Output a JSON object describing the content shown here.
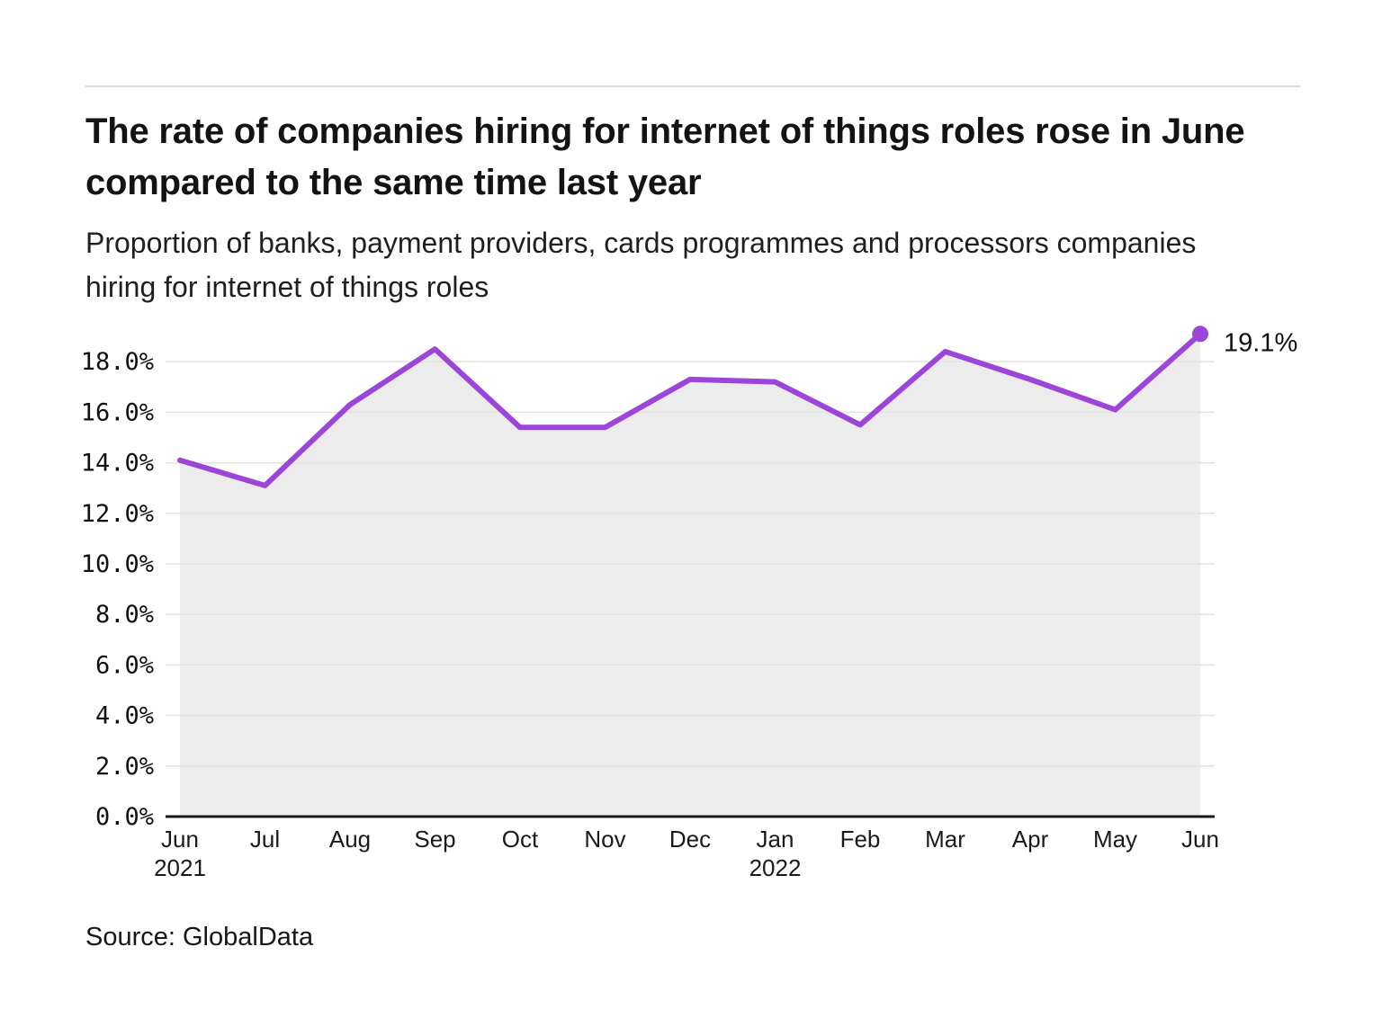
{
  "header": {
    "title": "The rate of companies hiring for internet of things roles rose in June compared to the same time last year",
    "subtitle": "Proportion of banks, payment providers, cards programmes and processors companies hiring for internet of things roles"
  },
  "source": {
    "label": "Source: GlobalData"
  },
  "chart_data": {
    "type": "area",
    "title": "The rate of companies hiring for internet of things roles rose in June compared to the same time last year",
    "subtitle": "Proportion of banks, payment providers, cards programmes and processors companies hiring for internet of things roles",
    "x": [
      "Jun 2021",
      "Jul 2021",
      "Aug 2021",
      "Sep 2021",
      "Oct 2021",
      "Nov 2021",
      "Dec 2021",
      "Jan 2022",
      "Feb 2022",
      "Mar 2022",
      "Apr 2022",
      "May 2022",
      "Jun 2022"
    ],
    "x_tick_labels": [
      {
        "month": "Jun",
        "year": "2021"
      },
      {
        "month": "Jul"
      },
      {
        "month": "Aug"
      },
      {
        "month": "Sep"
      },
      {
        "month": "Oct"
      },
      {
        "month": "Nov"
      },
      {
        "month": "Dec"
      },
      {
        "month": "Jan",
        "year": "2022"
      },
      {
        "month": "Feb"
      },
      {
        "month": "Mar"
      },
      {
        "month": "Apr"
      },
      {
        "month": "May"
      },
      {
        "month": "Jun"
      }
    ],
    "values": [
      14.1,
      13.1,
      16.3,
      18.5,
      15.4,
      15.4,
      17.3,
      17.2,
      15.5,
      18.4,
      17.3,
      16.1,
      19.1
    ],
    "unit": "%",
    "y_ticks": [
      "0.0%",
      "2.0%",
      "4.0%",
      "6.0%",
      "8.0%",
      "10.0%",
      "12.0%",
      "14.0%",
      "16.0%",
      "18.0%"
    ],
    "y_tick_values": [
      0,
      2,
      4,
      6,
      8,
      10,
      12,
      14,
      16,
      18
    ],
    "ylim": [
      0,
      19.6
    ],
    "xlabel": "",
    "ylabel": "",
    "grid": "horizontal",
    "legend": "none",
    "end_label": "19.1%",
    "colors": {
      "line": "#9c45d9",
      "marker": "#9c45d9",
      "area_fill": "#ececec",
      "gridline": "#e2e2e2",
      "axis": "#1a1a1a",
      "text": "#1a1a1a"
    }
  }
}
